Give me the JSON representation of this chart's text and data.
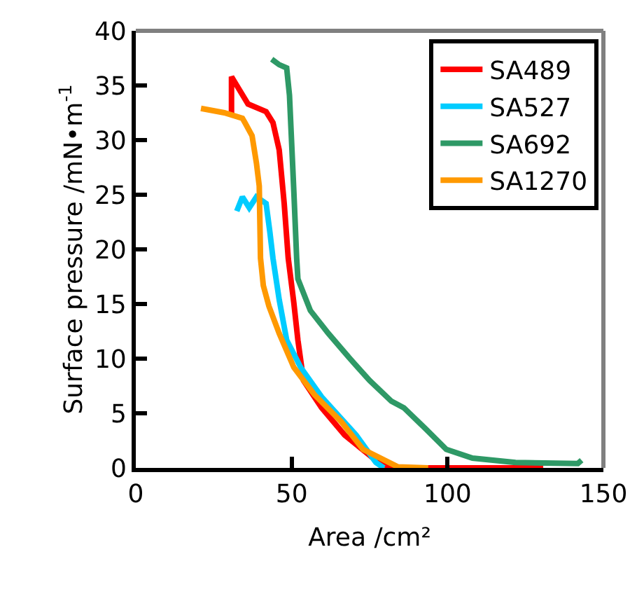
{
  "chart_data": {
    "type": "line",
    "xlabel": "Area /cm²",
    "ylabel": "Surface pressure /mN•m$^{-1}$",
    "xlim": [
      0,
      150
    ],
    "ylim": [
      0,
      40
    ],
    "xticks": [
      0,
      50,
      100,
      150
    ],
    "yticks": [
      0,
      5,
      10,
      15,
      20,
      25,
      30,
      35,
      40
    ],
    "legend": "top right",
    "marker": "none",
    "line_style": "solid",
    "series": [
      {
        "name": "SA489",
        "color": "#ff0000",
        "x": [
          30.7,
          30.7,
          36,
          41.8,
          44,
          46,
          47.6,
          48.9,
          50.7,
          52,
          53.8,
          59.6,
          67,
          77,
          82,
          130.7
        ],
        "values": [
          32.4,
          35.8,
          33.3,
          32.6,
          31.6,
          29.1,
          24.2,
          19.2,
          15.1,
          11.7,
          8.0,
          5.5,
          3.0,
          0.7,
          0,
          0
        ]
      },
      {
        "name": "SA527",
        "color": "#00ccff",
        "x": [
          32.4,
          34.2,
          36.4,
          38.7,
          41.8,
          43,
          44,
          46,
          48.4,
          52.9,
          59.6,
          70.7,
          77,
          79.6
        ],
        "values": [
          23.5,
          24.8,
          23.8,
          24.8,
          24.2,
          21.6,
          19.2,
          15.4,
          11.7,
          9.2,
          6.5,
          3.0,
          0.5,
          0
        ]
      },
      {
        "name": "SA692",
        "color": "#2e9966",
        "x": [
          43.6,
          46,
          48.4,
          49.3,
          50.7,
          51.6,
          52,
          56,
          61.8,
          68.4,
          75,
          82,
          86,
          92.9,
          99.6,
          108,
          121.8,
          141.8,
          143
        ],
        "values": [
          37.4,
          36.9,
          36.6,
          34.1,
          25.3,
          19.2,
          17.3,
          14.4,
          12.3,
          10.1,
          8.0,
          6.1,
          5.5,
          3.6,
          1.7,
          0.9,
          0.5,
          0.4,
          0.7
        ]
      },
      {
        "name": "SA1270",
        "color": "#ff9900",
        "x": [
          20.9,
          28.4,
          34.2,
          35,
          37.3,
          38.7,
          39.6,
          40,
          40.9,
          42.7,
          46,
          50.7,
          57.3,
          66,
          72.9,
          84,
          93.8
        ],
        "values": [
          32.9,
          32.5,
          32.0,
          31.6,
          30.4,
          27.9,
          25.8,
          19.2,
          16.7,
          14.8,
          12.3,
          9.2,
          6.7,
          4.2,
          1.7,
          0.1,
          0
        ]
      }
    ]
  }
}
